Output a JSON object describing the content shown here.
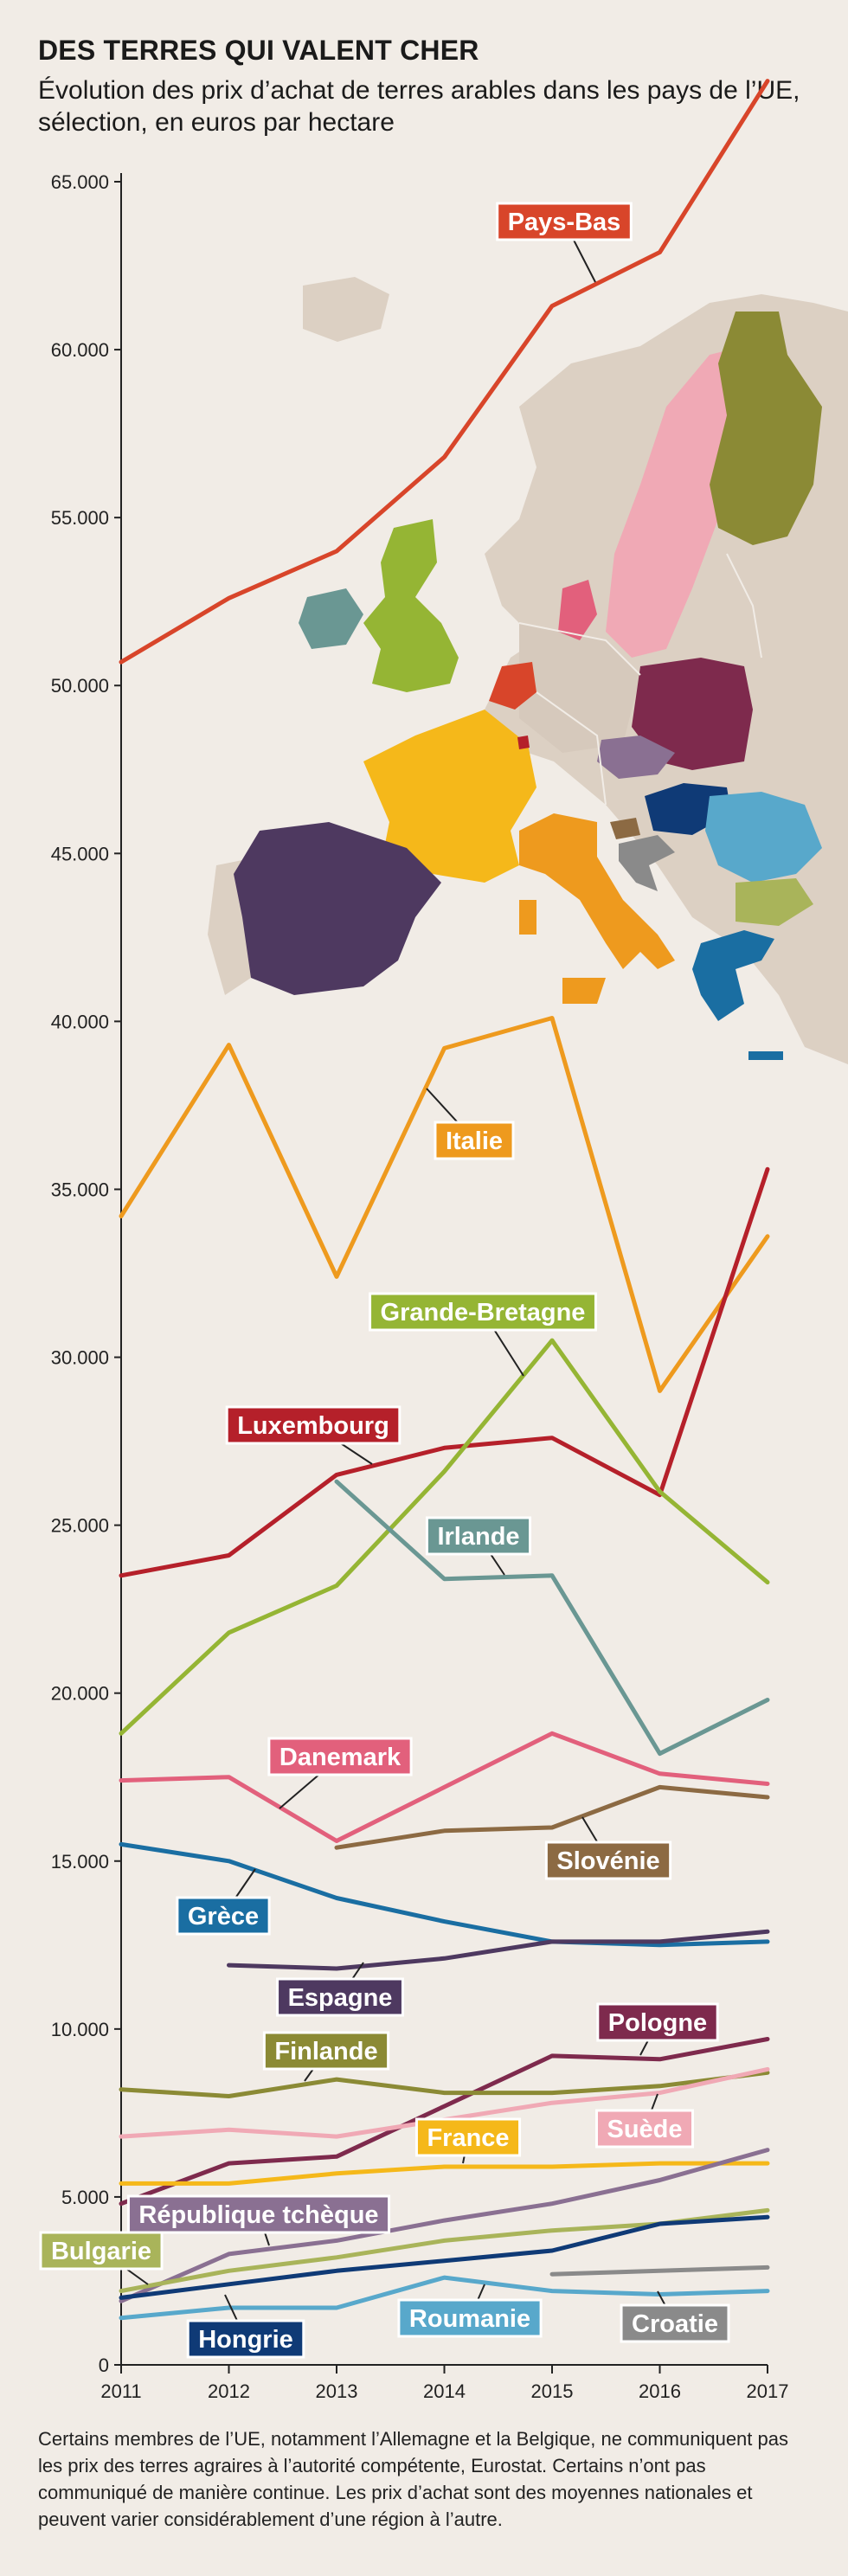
{
  "header": {
    "title": "DES TERRES QUI VALENT CHER",
    "subtitle": "Évolution des prix d’achat de terres arables dans les pays de l’UE, sélection, en euros par hectare"
  },
  "footnote": "Certains membres de l’UE, notamment l’Allemagne et la Belgique, ne communiquent pas les prix des terres agraires à l’autorité compétente, Eurostat. Certains n’ont pas communiqué de manière continue. Les prix d’achat sont des moyennes nationales et peuvent varier considérablement d’une région à l’autre.",
  "map": {
    "label": "map of Europe with highlighted countries"
  },
  "chart_data": {
    "type": "line",
    "title": "DES TERRES QUI VALENT CHER",
    "xlabel": "",
    "ylabel": "",
    "x": [
      2011,
      2012,
      2013,
      2014,
      2015,
      2016,
      2017
    ],
    "ylim": [
      0,
      65000
    ],
    "y_ticks": [
      0,
      5000,
      10000,
      15000,
      20000,
      25000,
      30000,
      35000,
      40000,
      45000,
      50000,
      55000,
      60000,
      65000
    ],
    "y_tick_labels": [
      "0",
      "5.000",
      "10.000",
      "15.000",
      "20.000",
      "25.000",
      "30.000",
      "35.000",
      "40.000",
      "45.000",
      "50.000",
      "55.000",
      "60.000",
      "65.000"
    ],
    "grid": false,
    "legend": "inline labels",
    "series": [
      {
        "name": "Pays-Bas",
        "color": "#d8452a",
        "values": [
          50700,
          52600,
          54000,
          56800,
          61300,
          62900,
          68000
        ]
      },
      {
        "name": "Italie",
        "color": "#ee9a1e",
        "values": [
          34200,
          39300,
          32400,
          39200,
          40100,
          29000,
          33600
        ]
      },
      {
        "name": "Luxembourg",
        "color": "#b5202a",
        "values": [
          23500,
          24100,
          26500,
          27300,
          27600,
          25900,
          35600
        ]
      },
      {
        "name": "Grande-Bretagne",
        "color": "#95b534",
        "values": [
          18800,
          21800,
          23200,
          26600,
          30500,
          26000,
          23300
        ]
      },
      {
        "name": "Irlande",
        "color": "#6a9793",
        "values": [
          null,
          null,
          26300,
          23400,
          23500,
          18200,
          19800
        ]
      },
      {
        "name": "Danemark",
        "color": "#e2607c",
        "values": [
          17400,
          17500,
          15600,
          17200,
          18800,
          17600,
          17300
        ]
      },
      {
        "name": "Slovénie",
        "color": "#8c6a43",
        "values": [
          null,
          null,
          15400,
          15900,
          16000,
          17200,
          16900
        ]
      },
      {
        "name": "Grèce",
        "color": "#1a6ea2",
        "values": [
          15500,
          15000,
          13900,
          13200,
          12600,
          12500,
          12600
        ]
      },
      {
        "name": "Espagne",
        "color": "#4e3960",
        "values": [
          null,
          11900,
          11800,
          12100,
          12600,
          12600,
          12900
        ]
      },
      {
        "name": "Pologne",
        "color": "#7e2a4d",
        "values": [
          4800,
          6000,
          6200,
          7700,
          9200,
          9100,
          9700
        ]
      },
      {
        "name": "Finlande",
        "color": "#8b8a35",
        "values": [
          8200,
          8000,
          8500,
          8100,
          8100,
          8300,
          8700
        ]
      },
      {
        "name": "Suède",
        "color": "#f0a9b5",
        "values": [
          6800,
          7000,
          6800,
          7300,
          7800,
          8100,
          8800
        ]
      },
      {
        "name": "France",
        "color": "#f5b81a",
        "values": [
          5400,
          5400,
          5700,
          5900,
          5900,
          6000,
          6000
        ]
      },
      {
        "name": "République tchèque",
        "color": "#8a7092",
        "values": [
          1900,
          3300,
          3700,
          4300,
          4800,
          5500,
          6400
        ]
      },
      {
        "name": "Bulgarie",
        "color": "#a9b45a",
        "values": [
          2200,
          2800,
          3200,
          3700,
          4000,
          4200,
          4600
        ]
      },
      {
        "name": "Hongrie",
        "color": "#0f3a76",
        "values": [
          2000,
          2400,
          2800,
          3100,
          3400,
          4200,
          4400
        ]
      },
      {
        "name": "Roumanie",
        "color": "#58a8cb",
        "values": [
          1400,
          1700,
          1700,
          2600,
          2200,
          2100,
          2200
        ]
      },
      {
        "name": "Croatie",
        "color": "#8a8a8a",
        "values": [
          null,
          null,
          null,
          null,
          2700,
          2800,
          2900
        ]
      }
    ]
  }
}
